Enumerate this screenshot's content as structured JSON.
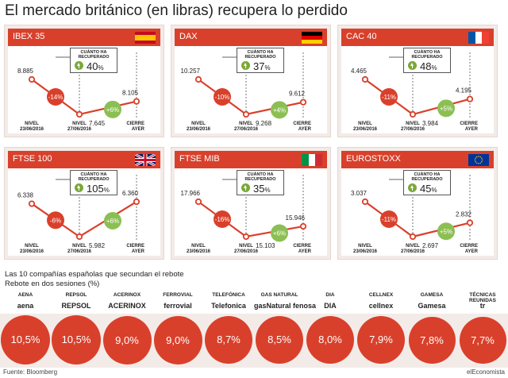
{
  "title": "El mercado británico (en libras) recupera lo perdido",
  "box_label": "CUÁNTO HA RECUPERADO",
  "axis_labels": {
    "level1": "NIVEL 23/06/2016",
    "level2": "NIVEL 27/06/2016",
    "close": "CIERRE AYER"
  },
  "colors": {
    "accent": "#d9402b",
    "green": "#8cbf53",
    "panel_bg": "#f3ebe8"
  },
  "chart_data": [
    {
      "type": "line",
      "name": "IBEX 35",
      "flag": "spain-flag",
      "values": [
        "8.885",
        "7.645",
        "8.105"
      ],
      "drops": "-14%",
      "rise": "+6%",
      "recovered": "40",
      "y": [
        8885,
        7645,
        8105
      ]
    },
    {
      "type": "line",
      "name": "DAX",
      "flag": "germany-flag",
      "values": [
        "10.257",
        "9.268",
        "9.612"
      ],
      "drops": "-10%",
      "rise": "+4%",
      "recovered": "37",
      "y": [
        10257,
        9268,
        9612
      ]
    },
    {
      "type": "line",
      "name": "CAC 40",
      "flag": "france-flag",
      "values": [
        "4.465",
        "3.984",
        "4.195"
      ],
      "drops": "-11%",
      "rise": "+5%",
      "recovered": "48",
      "y": [
        4465,
        3984,
        4195
      ]
    },
    {
      "type": "line",
      "name": "FTSE 100",
      "flag": "uk-flag",
      "values": [
        "6.338",
        "5.982",
        "6.360"
      ],
      "drops": "-6%",
      "rise": "+6%",
      "recovered": "105",
      "y": [
        6338,
        5982,
        6360
      ]
    },
    {
      "type": "line",
      "name": "FTSE MIB",
      "flag": "italy-flag",
      "values": [
        "17.966",
        "15.103",
        "15.946"
      ],
      "drops": "-16%",
      "rise": "+6%",
      "recovered": "35",
      "y": [
        17966,
        15103,
        15946
      ]
    },
    {
      "type": "line",
      "name": "EUROSTOXX",
      "flag": "eu-flag",
      "values": [
        "3.037",
        "2.697",
        "2.832"
      ],
      "drops": "-11%",
      "rise": "+5%",
      "recovered": "45",
      "y": [
        3037,
        2697,
        2832
      ]
    },
    {
      "type": "bar",
      "title": "Las 10 compañías españolas que secundan el rebote",
      "subtitle": "Rebote en dos sesiones (%)",
      "categories": [
        "AENA",
        "REPSOL",
        "ACERINOX",
        "FERROVIAL",
        "TELEFÓNICA",
        "GAS NATURAL",
        "DIA",
        "CELLNEX",
        "GAMESA",
        "TÉCNICAS REUNIDAS"
      ],
      "logos": [
        "aena",
        "REPSOL",
        "ACERINOX",
        "ferrovial",
        "Telefonica",
        "gasNatural fenosa",
        "DIA",
        "cellnex",
        "Gamesa",
        "tr"
      ],
      "labels": [
        "10,5%",
        "10,5%",
        "9,0%",
        "9,0%",
        "8,7%",
        "8,5%",
        "8,0%",
        "7,9%",
        "7,8%",
        "7,7%"
      ],
      "values": [
        10.5,
        10.5,
        9.0,
        9.0,
        8.7,
        8.5,
        8.0,
        7.9,
        7.8,
        7.7
      ]
    }
  ],
  "footer": {
    "source": "Fuente: Bloomberg",
    "brand": "elEconomista"
  }
}
